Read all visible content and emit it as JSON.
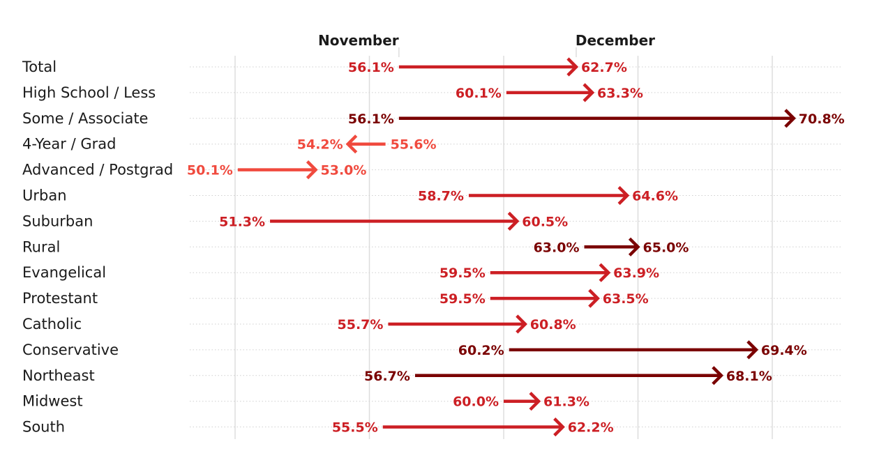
{
  "chart_data": {
    "type": "arrow",
    "columns": {
      "start": "November",
      "end": "December"
    },
    "unit": "%",
    "xlim": [
      48.5,
      73
    ],
    "x_gridlines": [
      50,
      55,
      60,
      65,
      70
    ],
    "grid": true,
    "legend": "none",
    "colors": {
      "light": "#f04a3e",
      "medium": "#cc1f24",
      "dark": "#7a0000"
    },
    "rows": [
      {
        "label": "Total",
        "november": 56.1,
        "december": 62.7,
        "start_label": "56.1%",
        "end_label": "62.7%",
        "color": "medium"
      },
      {
        "label": "High School / Less",
        "november": 60.1,
        "december": 63.3,
        "start_label": "60.1%",
        "end_label": "63.3%",
        "color": "medium"
      },
      {
        "label": "Some / Associate",
        "november": 56.1,
        "december": 70.8,
        "start_label": "56.1%",
        "end_label": "70.8%",
        "color": "dark"
      },
      {
        "label": "4-Year / Grad",
        "november": 55.6,
        "december": 54.2,
        "start_label": "55.6%",
        "end_label": "54.2%",
        "color": "light"
      },
      {
        "label": "Advanced / Postgrad",
        "november": 50.1,
        "december": 53.0,
        "start_label": "50.1%",
        "end_label": "53.0%",
        "color": "light"
      },
      {
        "label": "Urban",
        "november": 58.7,
        "december": 64.6,
        "start_label": "58.7%",
        "end_label": "64.6%",
        "color": "medium"
      },
      {
        "label": "Suburban",
        "november": 51.3,
        "december": 60.5,
        "start_label": "51.3%",
        "end_label": "60.5%",
        "color": "medium"
      },
      {
        "label": "Rural",
        "november": 63.0,
        "december": 65.0,
        "start_label": "63.0%",
        "end_label": "65.0%",
        "color": "dark"
      },
      {
        "label": "Evangelical",
        "november": 59.5,
        "december": 63.9,
        "start_label": "59.5%",
        "end_label": "63.9%",
        "color": "medium"
      },
      {
        "label": "Protestant",
        "november": 59.5,
        "december": 63.5,
        "start_label": "59.5%",
        "end_label": "63.5%",
        "color": "medium"
      },
      {
        "label": "Catholic",
        "november": 55.7,
        "december": 60.8,
        "start_label": "55.7%",
        "end_label": "60.8%",
        "color": "medium"
      },
      {
        "label": "Conservative",
        "november": 60.2,
        "december": 69.4,
        "start_label": "60.2%",
        "end_label": "69.4%",
        "color": "dark"
      },
      {
        "label": "Northeast",
        "november": 56.7,
        "december": 68.1,
        "start_label": "56.7%",
        "end_label": "68.1%",
        "color": "dark"
      },
      {
        "label": "Midwest",
        "november": 60.0,
        "december": 61.3,
        "start_label": "60.0%",
        "end_label": "61.3%",
        "color": "medium"
      },
      {
        "label": "South",
        "november": 55.5,
        "december": 62.2,
        "start_label": "55.5%",
        "end_label": "62.2%",
        "color": "medium"
      }
    ]
  }
}
